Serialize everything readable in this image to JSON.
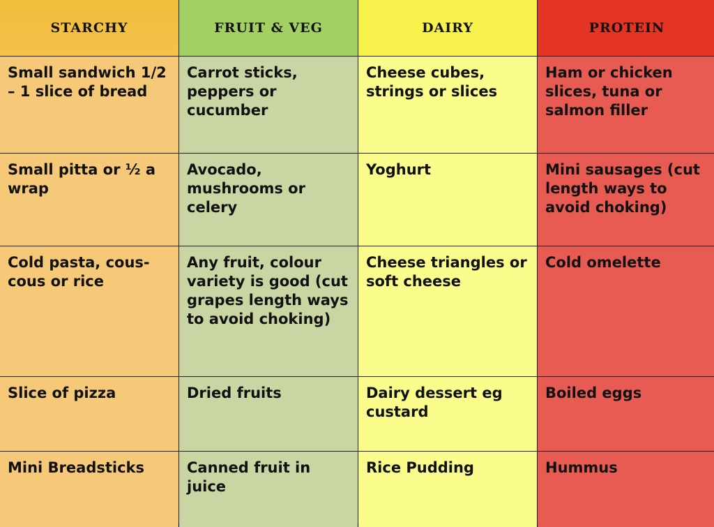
{
  "table": {
    "header": [
      "STARCHY",
      "FRUIT & VEG",
      "DAIRY",
      "PROTEIN"
    ],
    "rows": [
      [
        "Small sandwich 1/2 – 1 slice of bread",
        "Carrot sticks, peppers or cucumber",
        "Cheese cubes, strings or slices",
        "Ham or chicken slices, tuna or salmon filler"
      ],
      [
        "Small pitta or ½ a wrap",
        "Avocado, mushrooms or celery",
        "Yoghurt",
        "Mini sausages (cut length ways to avoid choking)"
      ],
      [
        "Cold pasta, cous-cous or rice",
        "Any fruit, colour variety is good (cut grapes length ways to avoid choking)",
        "Cheese triangles or soft cheese",
        "Cold omelette"
      ],
      [
        "Slice of pizza",
        "Dried fruits",
        "Dairy dessert eg custard",
        "Boiled eggs"
      ],
      [
        "Mini Breadsticks",
        "Canned fruit in juice",
        "Rice Pudding",
        "Hummus"
      ]
    ]
  }
}
